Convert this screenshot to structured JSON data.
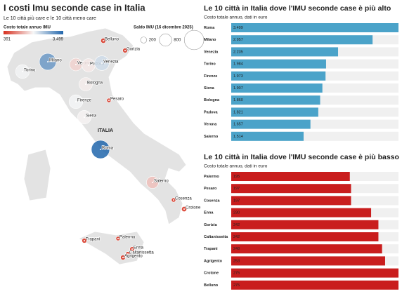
{
  "header": {
    "title": "I costi Imu seconde case in Italia",
    "subtitle": "Le 10 città più care e le 10 città meno care"
  },
  "map": {
    "color_legend": {
      "title": "Costo totale annuo IMU",
      "ticks": [
        391,
        {
          "value": 3499,
          "label": "3.499"
        }
      ],
      "colors": [
        "#d7301f",
        "#f7f7f7",
        "#2166ac"
      ]
    },
    "size_legend": {
      "title": "Saldo IMU (16 dicembre 2025)",
      "values": [
        200,
        800,
        2000
      ],
      "labels": [
        "200",
        "800",
        null
      ]
    },
    "country_label": "ITALIA",
    "cities": [
      {
        "name": "Belluno",
        "value": 275
      },
      {
        "name": "Gorizia",
        "value": 242
      },
      {
        "name": "Milano",
        "value": 2957
      },
      {
        "name": "Verona",
        "value": 1657
      },
      {
        "name": "Padova",
        "value": 1821
      },
      {
        "name": "Venezia",
        "value": 2235
      },
      {
        "name": "Torino",
        "value": 1984
      },
      {
        "name": "Bologna",
        "value": 1860
      },
      {
        "name": "Pesaro",
        "value": 197
      },
      {
        "name": "Firenze",
        "value": 1973
      },
      {
        "name": "Siena",
        "value": 1907
      },
      {
        "name": "Roma",
        "value": 3499
      },
      {
        "name": "Salerno",
        "value": 1514
      },
      {
        "name": "Cosenza",
        "value": 197
      },
      {
        "name": "Crotone",
        "value": 275
      },
      {
        "name": "Trapani",
        "value": 248
      },
      {
        "name": "Palermo",
        "value": 195
      },
      {
        "name": "Enna",
        "value": 230
      },
      {
        "name": "Caltanissetta",
        "value": 242
      },
      {
        "name": "Agrigento",
        "value": 253
      }
    ]
  },
  "chart_data": [
    {
      "type": "bar",
      "orientation": "horizontal",
      "title": "Le 10 città in Italia dove l'IMU seconde case è più alto",
      "subtitle": "Costo totale annuo, dati in euro",
      "categories": [
        "Roma",
        "Milano",
        "Venezia",
        "Torino",
        "Firenze",
        "Siena",
        "Bologna",
        "Padova",
        "Verona",
        "Salerno"
      ],
      "values": [
        3499,
        2957,
        2235,
        1984,
        1973,
        1907,
        1860,
        1821,
        1657,
        1514
      ],
      "value_labels": [
        "3.499",
        "2.957",
        "2.235",
        "1.984",
        "1.973",
        "1.907",
        "1.860",
        "1.821",
        "1.657",
        "1.514"
      ],
      "color": "#4ba3c9",
      "xlim": [
        0,
        3499
      ]
    },
    {
      "type": "bar",
      "orientation": "horizontal",
      "title": "Le 10 città in Italia dove l'IMU seconde case è più basso",
      "subtitle": "Costo totale annuo, dati in euro",
      "categories": [
        "Palermo",
        "Pesaro",
        "Cosenza",
        "Enna",
        "Gorizia",
        "Caltanissetta",
        "Trapani",
        "Agrigento",
        "Crotone",
        "Belluno"
      ],
      "values": [
        195,
        197,
        197,
        230,
        242,
        242,
        248,
        253,
        275,
        275
      ],
      "color": "#c91d1d",
      "xlim": [
        0,
        275
      ]
    }
  ]
}
